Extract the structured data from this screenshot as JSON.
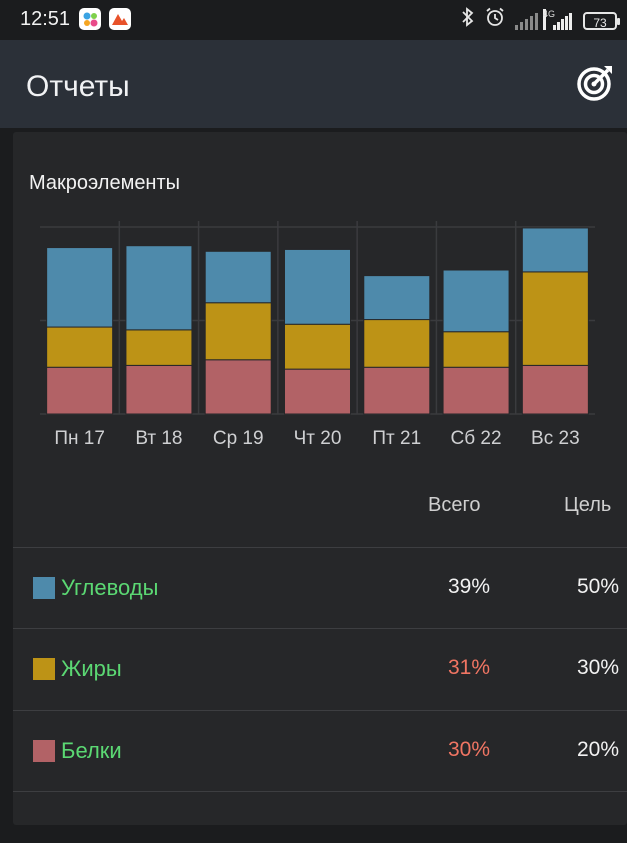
{
  "status_bar": {
    "time": "12:51",
    "battery": "73",
    "network": "4G"
  },
  "app_bar": {
    "title": "Отчеты"
  },
  "colors": {
    "carbs": "#4e8aab",
    "fats": "#bd9316",
    "proteins": "#b26266",
    "over_goal": "#f07563",
    "within_goal": "#f2f2f2",
    "name_text": "#5bd873"
  },
  "chart_data": {
    "type": "bar",
    "stacked": true,
    "title": "Макроэлементы",
    "categories": [
      "Пн 17",
      "Вт 18",
      "Ср 19",
      "Чт 20",
      "Пт 21",
      "Сб 22",
      "Вс 23"
    ],
    "series": [
      {
        "name": "Белки",
        "color": "#b26266",
        "values": [
          50,
          52,
          58,
          48,
          50,
          50,
          52
        ]
      },
      {
        "name": "Жиры",
        "color": "#bd9316",
        "values": [
          43,
          38,
          61,
          48,
          51,
          38,
          100
        ]
      },
      {
        "name": "Углеводы",
        "color": "#4e8aab",
        "values": [
          85,
          90,
          55,
          80,
          47,
          66,
          47
        ]
      }
    ],
    "ylim": [
      0,
      200
    ],
    "grid": true
  },
  "table": {
    "header_total": "Всего",
    "header_goal": "Цель",
    "rows": [
      {
        "name": "Углеводы",
        "total": "39%",
        "goal": "50%",
        "color": "#4e8aab",
        "over": false
      },
      {
        "name": "Жиры",
        "total": "31%",
        "goal": "30%",
        "color": "#bd9316",
        "over": true
      },
      {
        "name": "Белки",
        "total": "30%",
        "goal": "20%",
        "color": "#b26266",
        "over": true
      }
    ]
  }
}
